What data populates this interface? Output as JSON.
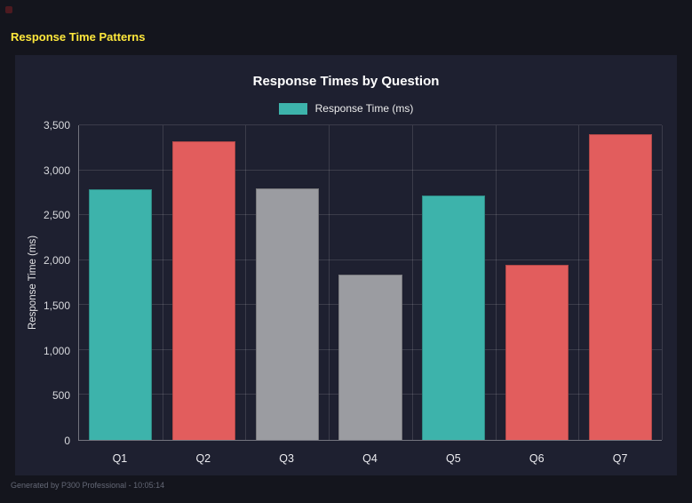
{
  "header": {
    "title": "Response Time Patterns"
  },
  "chart": {
    "title": "Response Times by Question",
    "legend_label": "Response Time (ms)",
    "ylabel": "Response Time (ms)"
  },
  "chart_data": {
    "type": "bar",
    "title": "Response Times by Question",
    "categories": [
      "Q1",
      "Q2",
      "Q3",
      "Q4",
      "Q5",
      "Q6",
      "Q7"
    ],
    "values": [
      2790,
      3320,
      2800,
      1840,
      2720,
      1950,
      3400
    ],
    "bar_colors": [
      "#3db3ab",
      "#e25d5d",
      "#9b9ca1",
      "#9b9ca1",
      "#3db3ab",
      "#e25d5d",
      "#e25d5d"
    ],
    "legend": [
      "Response Time (ms)"
    ],
    "legend_position": "top",
    "legend_color": "#3db3ab",
    "xlabel": "",
    "ylabel": "Response Time (ms)",
    "ylim": [
      0,
      3500
    ],
    "yticks": [
      0,
      500,
      1000,
      1500,
      2000,
      2500,
      3000,
      3500
    ],
    "grid": true
  },
  "footer": {
    "text": "Generated by P300 Professional - 10:05:14"
  }
}
